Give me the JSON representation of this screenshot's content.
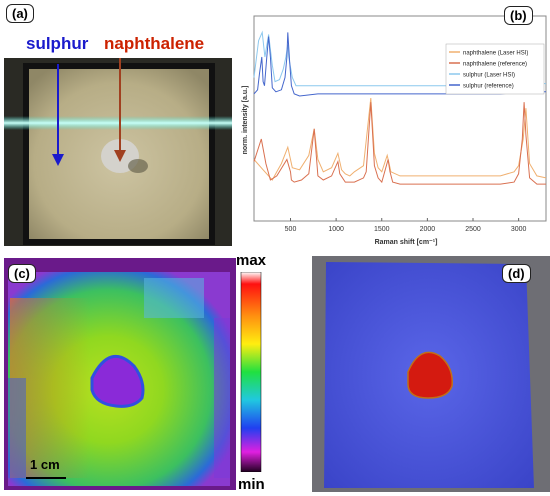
{
  "panels": {
    "a": {
      "label": "(a)",
      "sulphur_label": "sulphur",
      "naphthalene_label": "naphthalene",
      "colors": {
        "sulphur": "#1a1acc",
        "naphthalene": "#cc2200"
      }
    },
    "b": {
      "label": "(b)"
    },
    "c": {
      "label": "(c)",
      "scale_bar": "1 cm",
      "colorbar_max": "max",
      "colorbar_min": "min"
    },
    "d": {
      "label": "(d)"
    }
  },
  "chart_data": {
    "type": "line",
    "xlabel": "Raman shift [cm⁻¹]",
    "ylabel": "norm. intensity [a.u.]",
    "xlim": [
      100,
      3300
    ],
    "x_ticks": [
      "500",
      "1000",
      "1500",
      "2000",
      "2500",
      "3000"
    ],
    "legend_position": "top-right",
    "series": [
      {
        "name": "naphthalene (Laser HSI)",
        "color": "#f0b070",
        "x": [
          100,
          200,
          300,
          350,
          400,
          470,
          500,
          520,
          600,
          700,
          760,
          800,
          860,
          950,
          1020,
          1060,
          1100,
          1150,
          1200,
          1300,
          1380,
          1420,
          1460,
          1500,
          1560,
          1580,
          1600,
          1700,
          1900,
          2200,
          2500,
          2800,
          2950,
          3000,
          3050,
          3080,
          3120,
          3200,
          3300
        ],
        "y": [
          0.3,
          0.25,
          0.2,
          0.24,
          0.28,
          0.36,
          0.3,
          0.26,
          0.25,
          0.32,
          0.45,
          0.3,
          0.24,
          0.26,
          0.33,
          0.25,
          0.23,
          0.22,
          0.24,
          0.27,
          0.6,
          0.33,
          0.26,
          0.24,
          0.32,
          0.28,
          0.24,
          0.22,
          0.22,
          0.22,
          0.22,
          0.22,
          0.24,
          0.27,
          0.4,
          0.55,
          0.28,
          0.22,
          0.21
        ]
      },
      {
        "name": "naphthalene (reference)",
        "color": "#d97050",
        "x": [
          100,
          180,
          230,
          280,
          350,
          460,
          500,
          510,
          540,
          620,
          700,
          760,
          800,
          860,
          950,
          1020,
          1040,
          1100,
          1200,
          1300,
          1330,
          1380,
          1420,
          1460,
          1500,
          1570,
          1590,
          1620,
          1700,
          1900,
          2200,
          2500,
          2800,
          2950,
          3000,
          3040,
          3060,
          3080,
          3120,
          3200,
          3300
        ],
        "y": [
          0.29,
          0.4,
          0.28,
          0.2,
          0.22,
          0.3,
          0.24,
          0.2,
          0.19,
          0.2,
          0.23,
          0.45,
          0.22,
          0.2,
          0.22,
          0.29,
          0.23,
          0.19,
          0.19,
          0.21,
          0.24,
          0.58,
          0.27,
          0.21,
          0.19,
          0.3,
          0.24,
          0.19,
          0.18,
          0.18,
          0.18,
          0.18,
          0.18,
          0.19,
          0.23,
          0.4,
          0.58,
          0.42,
          0.21,
          0.18,
          0.18
        ]
      },
      {
        "name": "sulphur (Laser HSI)",
        "color": "#8cc8ee",
        "x": [
          100,
          150,
          190,
          220,
          260,
          300,
          330,
          380,
          420,
          450,
          470,
          480,
          520,
          560,
          600,
          800,
          1200,
          1600,
          2000,
          2400,
          2800,
          3100,
          3300
        ],
        "y": [
          0.7,
          0.88,
          0.92,
          0.8,
          0.91,
          0.76,
          0.68,
          0.69,
          0.74,
          0.8,
          0.86,
          0.8,
          0.7,
          0.66,
          0.66,
          0.66,
          0.66,
          0.66,
          0.66,
          0.66,
          0.67,
          0.68,
          0.67
        ]
      },
      {
        "name": "sulphur (reference)",
        "color": "#4466cc",
        "x": [
          100,
          140,
          160,
          185,
          200,
          215,
          240,
          260,
          280,
          300,
          340,
          400,
          440,
          460,
          470,
          490,
          510,
          540,
          600,
          800,
          1200,
          1600,
          2000,
          2400,
          2800,
          3100,
          3300
        ],
        "y": [
          0.62,
          0.64,
          0.72,
          0.8,
          0.68,
          0.66,
          0.8,
          0.9,
          0.8,
          0.65,
          0.63,
          0.64,
          0.7,
          0.8,
          0.92,
          0.78,
          0.66,
          0.62,
          0.61,
          0.62,
          0.62,
          0.62,
          0.62,
          0.62,
          0.62,
          0.63,
          0.63
        ]
      }
    ]
  }
}
